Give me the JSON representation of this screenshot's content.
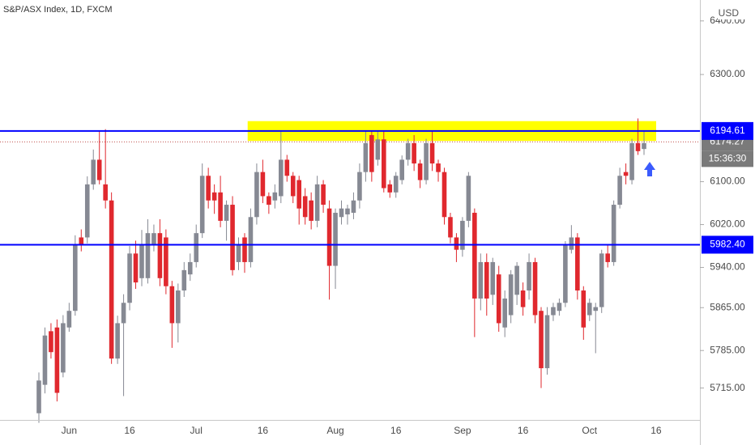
{
  "chart_data": {
    "type": "candlestick",
    "title": "S&P/ASX Index, 1D, FXCM",
    "currency": "USD",
    "categories": [
      null,
      null,
      null,
      null,
      null,
      "Jun",
      null,
      null,
      null,
      null,
      null,
      null,
      null,
      null,
      null,
      "16",
      null,
      null,
      null,
      null,
      null,
      null,
      null,
      null,
      null,
      null,
      "Jul",
      null,
      null,
      null,
      null,
      null,
      null,
      null,
      null,
      null,
      null,
      "16",
      null,
      null,
      null,
      null,
      null,
      null,
      null,
      null,
      null,
      null,
      null,
      "Aug",
      null,
      null,
      null,
      null,
      null,
      null,
      null,
      null,
      null,
      "16",
      null,
      null,
      null,
      null,
      null,
      null,
      null,
      null,
      null,
      null,
      "Sep",
      null,
      null,
      null,
      null,
      null,
      null,
      null,
      null,
      null,
      "16",
      null,
      null,
      null,
      null,
      null,
      null,
      null,
      null,
      null,
      null,
      "Oct",
      null,
      null,
      null,
      null,
      null,
      null,
      null,
      null,
      null,
      null,
      "16"
    ],
    "open": [
      5668,
      5721,
      5821,
      5828,
      5744,
      5828,
      5859,
      5996,
      5996,
      6095,
      6141,
      6095,
      6065,
      5770,
      5836,
      5874,
      5966,
      5920,
      5920,
      5981,
      6004,
      5996,
      5905,
      5836,
      5897,
      5927,
      5950,
      6004,
      6111,
      6080,
      6080,
      6027,
      6057,
      5950,
      5996,
      5950,
      6034,
      6118,
      6073,
      6065,
      6073,
      6141,
      6111,
      6103,
      6073,
      6065,
      6027,
      6095,
      6050,
      5943,
      6034,
      6039,
      6042,
      6065,
      6118,
      6187,
      6141,
      6179,
      6095,
      6080,
      6103,
      6141,
      6172,
      6134,
      6103,
      6172,
      6134,
      6118,
      6034,
      5996,
      5973,
      6027,
      6042,
      5882,
      5950,
      5889,
      5927,
      5828,
      5851,
      5889,
      5897,
      5897,
      5950,
      5859,
      5752,
      5851,
      5859,
      5874,
      5973,
      5996,
      5897,
      5851,
      5859,
      5866,
      5966,
      5950,
      6057,
      6118,
      6103,
      6172,
      6161,
      null,
      null
    ],
    "high": [
      5744,
      5828,
      5836,
      5843,
      5851,
      5874,
      6000,
      6011,
      6110,
      6160,
      6195,
      6198,
      6080,
      5850,
      5890,
      5980,
      5990,
      6010,
      6030,
      6020,
      6030,
      6011,
      5915,
      5910,
      5950,
      5966,
      6020,
      6134,
      6126,
      6095,
      6111,
      6065,
      6073,
      5996,
      6004,
      6050,
      6134,
      6141,
      6080,
      6095,
      6195,
      6150,
      6118,
      6111,
      6088,
      6080,
      6111,
      6103,
      6065,
      6050,
      6065,
      6057,
      6080,
      6134,
      6195,
      6195,
      6195,
      6195,
      6103,
      6118,
      6149,
      6180,
      6187,
      6141,
      6180,
      6195,
      6141,
      6126,
      6042,
      6004,
      6034,
      6118,
      6050,
      5966,
      5966,
      5958,
      5943,
      5897,
      5935,
      5950,
      5912,
      5966,
      5958,
      5866,
      5866,
      5874,
      5882,
      5989,
      6019,
      6004,
      5905,
      5882,
      5874,
      5973,
      5981,
      6065,
      6126,
      6134,
      6180,
      6218,
      6195,
      null,
      null
    ],
    "low": [
      5650,
      5705,
      5770,
      5690,
      5735,
      5820,
      5850,
      5970,
      5985,
      6085,
      6095,
      6050,
      5760,
      5760,
      5700,
      5860,
      5900,
      5905,
      5910,
      5970,
      5905,
      5890,
      5790,
      5800,
      5885,
      5915,
      5940,
      5995,
      6050,
      6040,
      6015,
      5990,
      5925,
      5935,
      5930,
      5940,
      6020,
      6060,
      6040,
      6050,
      6060,
      6100,
      6060,
      6020,
      6020,
      6011,
      6015,
      6042,
      5880,
      5900,
      6020,
      6020,
      6030,
      6050,
      6100,
      6100,
      6130,
      6080,
      6070,
      6070,
      6095,
      6130,
      6120,
      6088,
      6095,
      6120,
      6100,
      6020,
      5985,
      5950,
      5960,
      6015,
      5810,
      5860,
      5850,
      5870,
      5820,
      5810,
      5836,
      5870,
      5850,
      5880,
      5836,
      5715,
      5740,
      5840,
      5850,
      5866,
      5966,
      5880,
      5805,
      5840,
      5780,
      5855,
      5940,
      5943,
      6050,
      6095,
      6095,
      6150,
      6150,
      null,
      null
    ],
    "close": [
      5729,
      5813,
      5782,
      5706,
      5836,
      5859,
      5981,
      5981,
      6095,
      6141,
      6103,
      6065,
      5770,
      5836,
      5874,
      5966,
      5912,
      5981,
      6004,
      6004,
      5920,
      5905,
      5836,
      5897,
      5935,
      5950,
      6004,
      6111,
      6065,
      6065,
      6027,
      6057,
      5935,
      5981,
      5950,
      6034,
      6118,
      6073,
      6057,
      6080,
      6141,
      6111,
      6073,
      6050,
      6034,
      6027,
      6095,
      6057,
      5943,
      6042,
      6050,
      6050,
      6065,
      6118,
      6172,
      6118,
      6179,
      6088,
      6080,
      6111,
      6141,
      6172,
      6134,
      6103,
      6172,
      6134,
      6118,
      6034,
      5996,
      5973,
      6027,
      6111,
      5882,
      5950,
      5882,
      5950,
      5836,
      5882,
      5927,
      5943,
      5866,
      5950,
      5851,
      5752,
      5851,
      5866,
      5874,
      5981,
      5996,
      5897,
      5828,
      5874,
      5866,
      5966,
      5950,
      6057,
      6111,
      6111,
      6172,
      6157,
      6172,
      null,
      null
    ],
    "up_color": "#868993",
    "down_color": "#e0282e",
    "ylim": [
      5654,
      6439
    ],
    "yticks": [
      {
        "value": 6400,
        "label": "6400.00"
      },
      {
        "value": 6300,
        "label": "6300.00"
      },
      {
        "value": 6100,
        "label": "6100.00"
      },
      {
        "value": 6020,
        "label": "6020.00"
      },
      {
        "value": 5940,
        "label": "5940.00"
      },
      {
        "value": 5865,
        "label": "5865.00"
      },
      {
        "value": 5785,
        "label": "5785.00"
      },
      {
        "value": 5715,
        "label": "5715.00"
      }
    ],
    "hlines": [
      {
        "value": 6194.61,
        "label": "6194.61",
        "color": "#0000ff"
      },
      {
        "value": 5982.4,
        "label": "5982.40",
        "color": "#0000ff"
      }
    ],
    "last_price": {
      "value": 6174.27,
      "label": "6174.27",
      "countdown": "15:36:30",
      "color": "#c0504d"
    },
    "zone": {
      "start_index": 35,
      "ylim": [
        6176,
        6213
      ],
      "color": "#ffff00"
    }
  }
}
